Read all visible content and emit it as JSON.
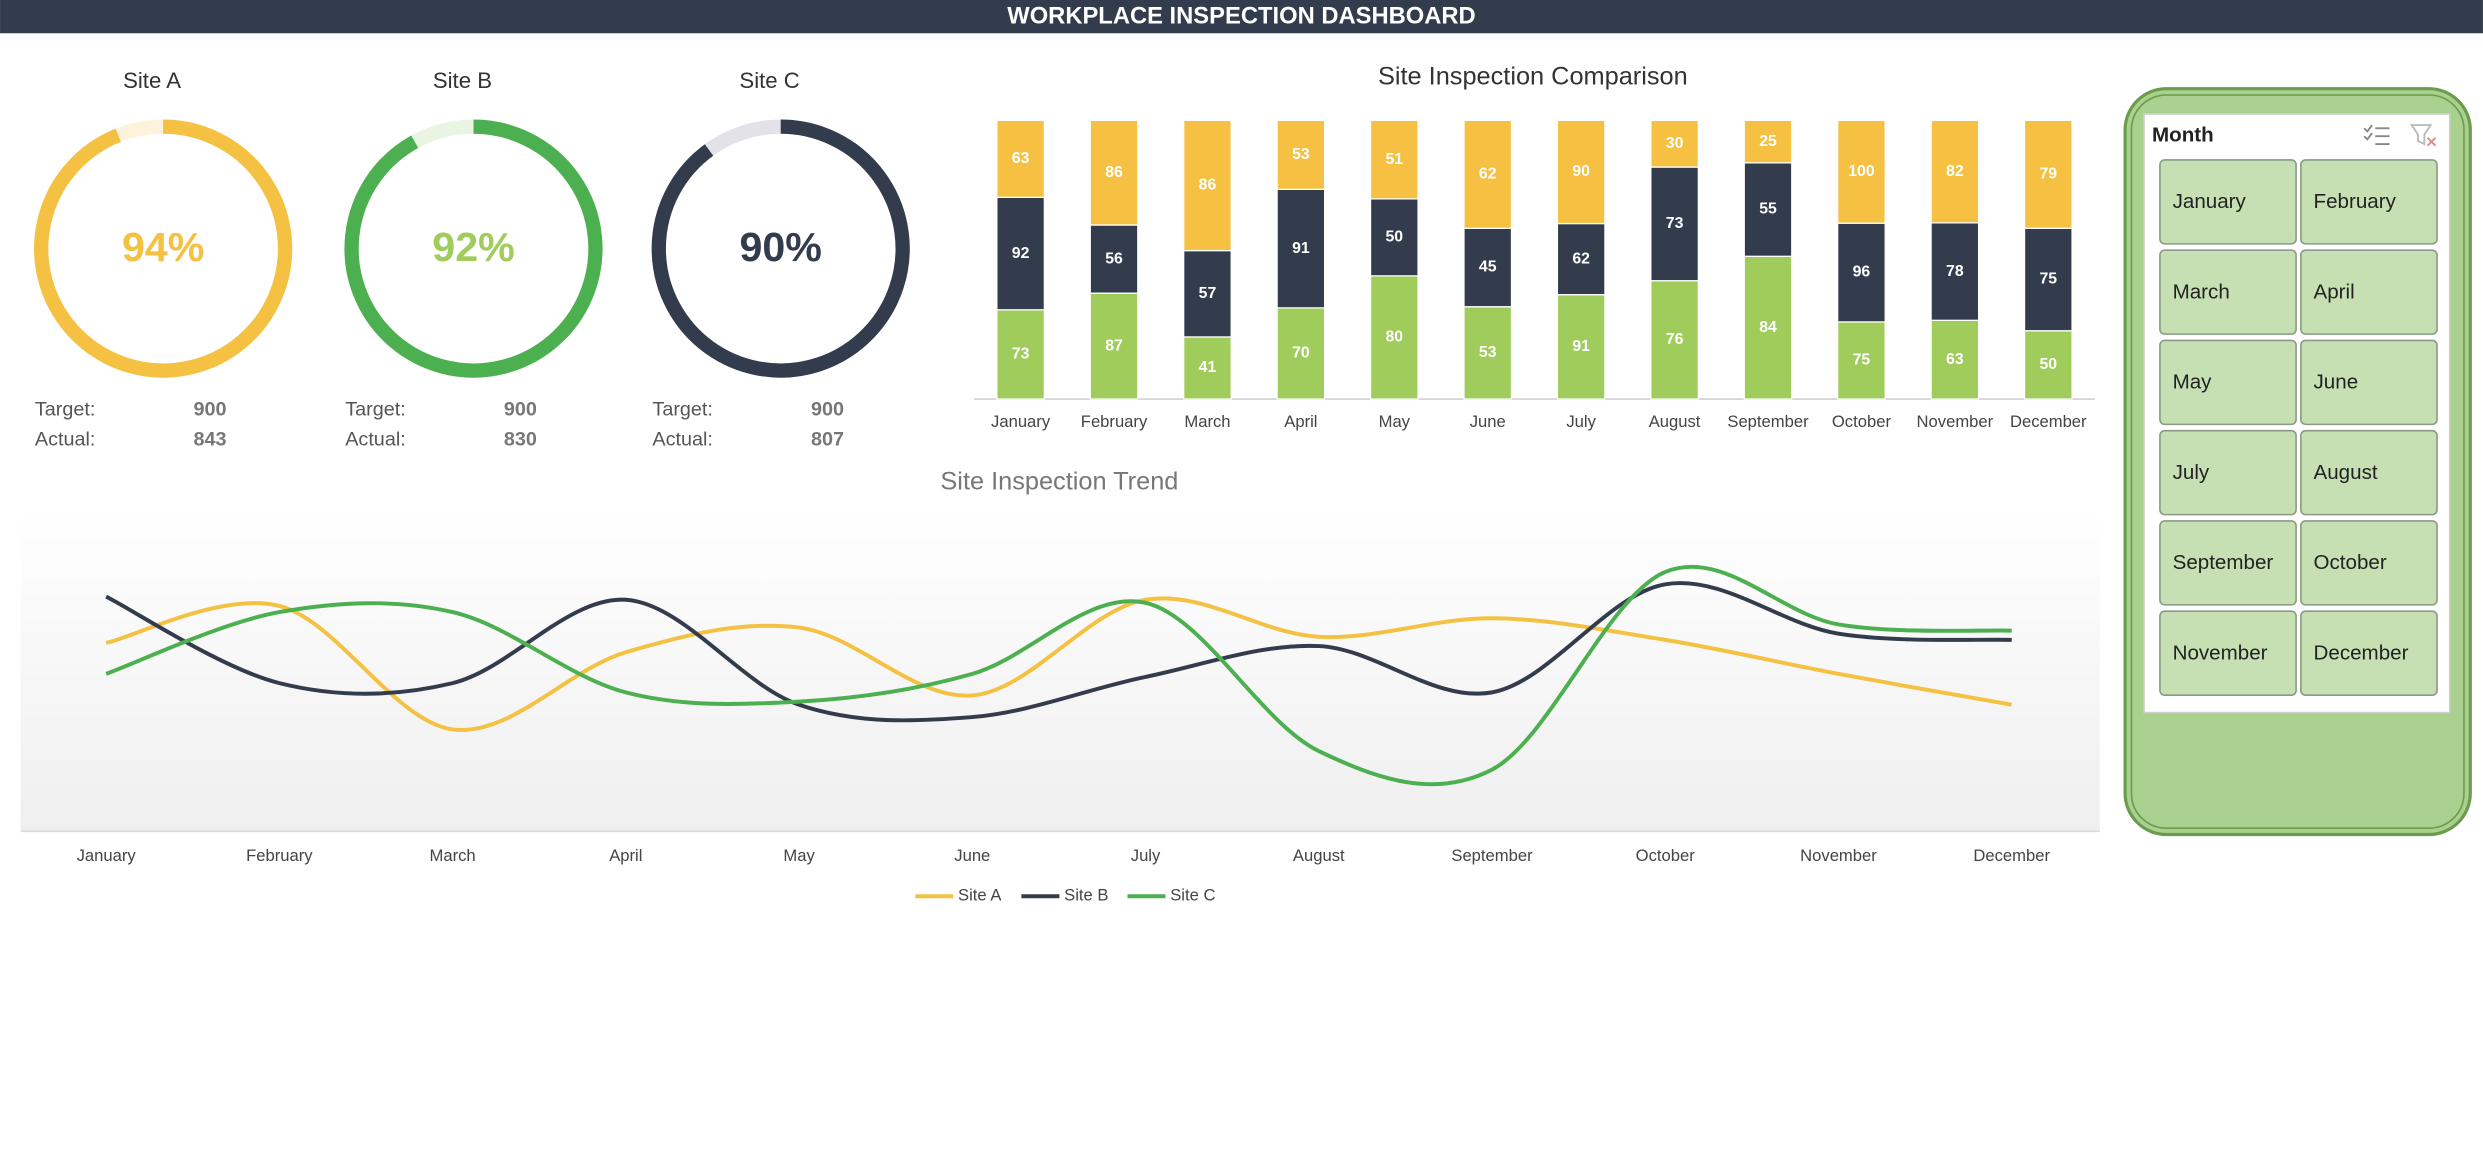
{
  "header": {
    "title": "WORKPLACE INSPECTION DASHBOARD"
  },
  "chart_data": [
    {
      "type": "donut",
      "title": "Site A",
      "values": [
        94
      ],
      "value_labels": [
        "94%"
      ],
      "color": "#f5c142",
      "track_color": "#fdf3dc",
      "label_color": "#f5c142",
      "stats": [
        {
          "label": "Target:",
          "value": 900
        },
        {
          "label": "Actual:",
          "value": 843
        }
      ]
    },
    {
      "type": "donut",
      "title": "Site B",
      "values": [
        92
      ],
      "value_labels": [
        "92%"
      ],
      "color": "#4caf50",
      "track_color": "#e9f4e2",
      "label_color": "#a0cc5c",
      "stats": [
        {
          "label": "Target:",
          "value": 900
        },
        {
          "label": "Actual:",
          "value": 830
        }
      ]
    },
    {
      "type": "donut",
      "title": "Site C",
      "values": [
        90
      ],
      "value_labels": [
        "90%"
      ],
      "color": "#333c4c",
      "track_color": "#e2e2e8",
      "label_color": "#333c4c",
      "stats": [
        {
          "label": "Target:",
          "value": 900
        },
        {
          "label": "Actual:",
          "value": 807
        }
      ]
    },
    {
      "type": "bar",
      "stacked": "percent",
      "title": "Site Inspection Comparison",
      "categories": [
        "January",
        "February",
        "March",
        "April",
        "May",
        "June",
        "July",
        "August",
        "September",
        "October",
        "November",
        "December"
      ],
      "series": [
        {
          "name": "Site C",
          "color": "#a0cc5c",
          "values": [
            73,
            87,
            41,
            70,
            80,
            53,
            91,
            76,
            84,
            75,
            63,
            50
          ]
        },
        {
          "name": "Site B",
          "color": "#333c4c",
          "values": [
            92,
            56,
            57,
            91,
            50,
            45,
            62,
            73,
            55,
            96,
            78,
            75
          ]
        },
        {
          "name": "Site A",
          "color": "#f6c142",
          "values": [
            63,
            86,
            86,
            53,
            51,
            62,
            90,
            30,
            25,
            100,
            82,
            79
          ]
        }
      ]
    },
    {
      "type": "line",
      "title": "Site Inspection Trend",
      "smooth": true,
      "ylim": [
        0,
        100
      ],
      "categories": [
        "January",
        "February",
        "March",
        "April",
        "May",
        "June",
        "July",
        "August",
        "September",
        "October",
        "November",
        "December"
      ],
      "series": [
        {
          "name": "Site A",
          "color": "#f5c142",
          "values": [
            61,
            73,
            33,
            58,
            66,
            44,
            75,
            63,
            69,
            62,
            51,
            41
          ]
        },
        {
          "name": "Site B",
          "color": "#333c4c",
          "values": [
            76,
            48,
            48,
            75,
            41,
            37,
            50,
            60,
            45,
            80,
            64,
            62
          ]
        },
        {
          "name": "Site C",
          "color": "#4caf50",
          "values": [
            51,
            71,
            71,
            45,
            42,
            51,
            74,
            26,
            20,
            84,
            67,
            65
          ]
        }
      ]
    }
  ],
  "slicer": {
    "title": "Month",
    "items": [
      "January",
      "February",
      "March",
      "April",
      "May",
      "June",
      "July",
      "August",
      "September",
      "October",
      "November",
      "December"
    ]
  }
}
